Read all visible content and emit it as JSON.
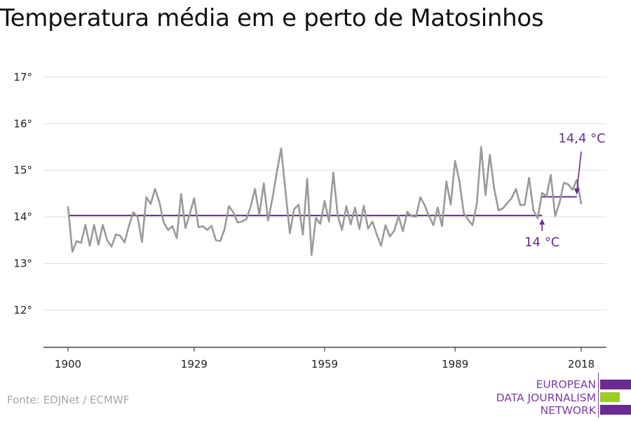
{
  "title": "Temperatura média em e perto de Matosinhos",
  "source": "Fonte: EDJNet / ECMWF",
  "logo": {
    "line1": "EUROPEAN",
    "line2": "DATA JOURNALISM",
    "line3": "NETWORK"
  },
  "colors": {
    "series": "#999999",
    "average": "#6a2a92",
    "annotation": "#6a2a92",
    "grid": "#dddddd",
    "axis": "#222222",
    "logo_purple": "#7b3aa5",
    "logo_green": "#9ccc28"
  },
  "chart_data": {
    "type": "line",
    "title": "Temperatura média em e perto de Matosinhos",
    "xlabel": "",
    "ylabel": "",
    "xlim": [
      1900,
      2018
    ],
    "ylim": [
      11.2,
      17.3
    ],
    "x_ticks": [
      1900,
      1929,
      1959,
      1989,
      2018
    ],
    "y_ticks": [
      12,
      13,
      14,
      15,
      16,
      17
    ],
    "y_tick_labels": [
      "12°",
      "13°",
      "14°",
      "15°",
      "16°",
      "17°"
    ],
    "grid": true,
    "series": [
      {
        "name": "",
        "x": [
          1900,
          1901,
          1902,
          1903,
          1904,
          1905,
          1906,
          1907,
          1908,
          1909,
          1910,
          1911,
          1912,
          1913,
          1914,
          1915,
          1916,
          1917,
          1918,
          1919,
          1920,
          1921,
          1922,
          1923,
          1924,
          1925,
          1926,
          1927,
          1928,
          1929,
          1930,
          1931,
          1932,
          1933,
          1934,
          1935,
          1936,
          1937,
          1938,
          1939,
          1940,
          1941,
          1942,
          1943,
          1944,
          1945,
          1946,
          1947,
          1948,
          1949,
          1950,
          1951,
          1952,
          1953,
          1954,
          1955,
          1956,
          1957,
          1958,
          1959,
          1960,
          1961,
          1962,
          1963,
          1964,
          1965,
          1966,
          1967,
          1968,
          1969,
          1970,
          1971,
          1972,
          1973,
          1974,
          1975,
          1976,
          1977,
          1978,
          1979,
          1980,
          1981,
          1982,
          1983,
          1984,
          1985,
          1986,
          1987,
          1988,
          1989,
          1990,
          1991,
          1992,
          1993,
          1994,
          1995,
          1996,
          1997,
          1998,
          1999,
          2000,
          2001,
          2002,
          2003,
          2004,
          2005,
          2006,
          2007,
          2008,
          2009,
          2010,
          2011,
          2012,
          2013,
          2014,
          2015,
          2016,
          2017,
          2018
        ],
        "values": [
          14.22,
          13.25,
          13.48,
          13.44,
          13.83,
          13.38,
          13.83,
          13.4,
          13.83,
          13.5,
          13.36,
          13.62,
          13.6,
          13.45,
          13.8,
          14.1,
          14.0,
          13.46,
          14.42,
          14.28,
          14.6,
          14.32,
          13.88,
          13.72,
          13.8,
          13.54,
          14.49,
          13.76,
          14.06,
          14.4,
          13.78,
          13.8,
          13.72,
          13.81,
          13.5,
          13.48,
          13.74,
          14.23,
          14.1,
          13.88,
          13.9,
          13.95,
          14.22,
          14.6,
          14.05,
          14.72,
          13.92,
          14.4,
          14.95,
          15.47,
          14.55,
          13.65,
          14.17,
          14.26,
          13.62,
          14.82,
          13.18,
          13.98,
          13.85,
          14.34,
          13.9,
          14.95,
          14.04,
          13.72,
          14.23,
          13.84,
          14.2,
          13.74,
          14.24,
          13.75,
          13.9,
          13.62,
          13.38,
          13.82,
          13.58,
          13.7,
          14.02,
          13.69,
          14.11,
          14.02,
          14.0,
          14.42,
          14.25,
          14.02,
          13.82,
          14.2,
          13.8,
          14.76,
          14.26,
          15.2,
          14.76,
          14.08,
          13.94,
          13.82,
          14.28,
          15.5,
          14.47,
          15.33,
          14.6,
          14.14,
          14.18,
          14.3,
          14.4,
          14.6,
          14.25,
          14.26,
          14.84,
          14.14,
          13.97,
          14.52,
          14.44,
          14.9,
          14.02,
          14.3,
          14.73,
          14.7,
          14.58,
          14.8,
          14.28
        ]
      }
    ],
    "averages": [
      {
        "from": 1900,
        "to": 2009,
        "value": 14.03,
        "label": "14 °C"
      },
      {
        "from": 2009,
        "to": 2017,
        "value": 14.43,
        "label": "14,4 °C"
      }
    ]
  }
}
